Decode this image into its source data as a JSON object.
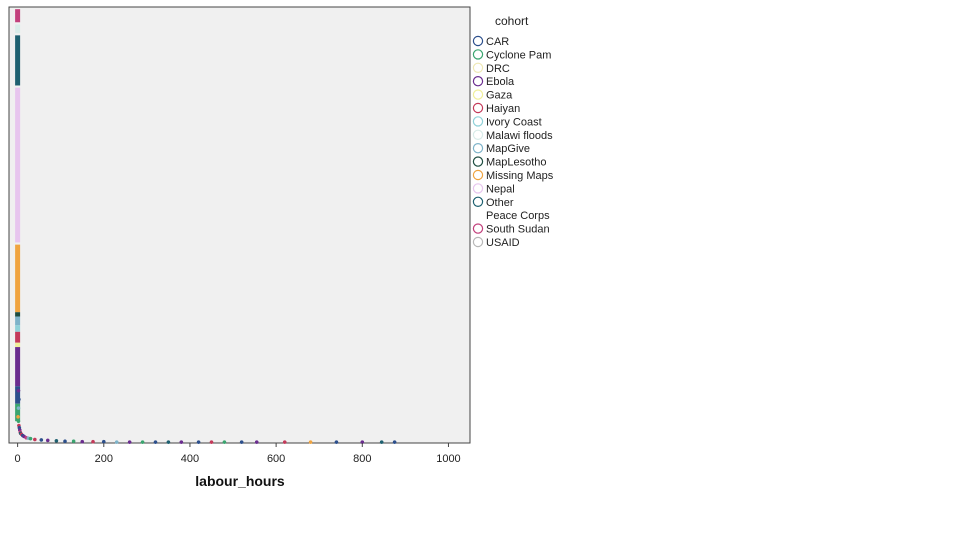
{
  "chart_data": {
    "type": "scatter",
    "xlabel": "labour_hours",
    "ylabel": "",
    "xlim": [
      -20,
      1050
    ],
    "xticks": [
      "0",
      "200",
      "400",
      "600",
      "800",
      "1000"
    ],
    "xtick_values": [
      0,
      200,
      400,
      600,
      800,
      1000
    ],
    "grid": false,
    "legend": {
      "title": "cohort",
      "placement": "right",
      "entries": [
        {
          "name": "CAR",
          "color": "#2c4f8c"
        },
        {
          "name": "Cyclone Pam",
          "color": "#3aa56f"
        },
        {
          "name": "DRC",
          "color": "#efe9b5"
        },
        {
          "name": "Ebola",
          "color": "#6a2d8f"
        },
        {
          "name": "Gaza",
          "color": "#f0ef9a"
        },
        {
          "name": "Haiyan",
          "color": "#c43a5a"
        },
        {
          "name": "Ivory Coast",
          "color": "#8fd1d8"
        },
        {
          "name": "Malawi floods",
          "color": "#d9ece9"
        },
        {
          "name": "MapGive",
          "color": "#7eb3c9"
        },
        {
          "name": "MapLesotho",
          "color": "#1e4d40"
        },
        {
          "name": "Missing Maps",
          "color": "#f0a440"
        },
        {
          "name": "Nepal",
          "color": "#e7c5ee"
        },
        {
          "name": "Other",
          "color": "#1e6070"
        },
        {
          "name": "Peace Corps",
          "color": "#ffffff"
        },
        {
          "name": "South Sudan",
          "color": "#c2407c"
        },
        {
          "name": "USAID",
          "color": "#b8b8b8"
        }
      ]
    },
    "series": [
      {
        "cohort": "South Sudan",
        "x": [
          0,
          0
        ],
        "y": [
          0.995,
          0.965
        ]
      },
      {
        "cohort": "Malawi floods",
        "x": [
          0,
          0
        ],
        "y": [
          0.96,
          0.94
        ]
      },
      {
        "cohort": "Other",
        "x": [
          0,
          0
        ],
        "y": [
          0.935,
          0.82
        ]
      },
      {
        "cohort": "Nepal",
        "x": [
          0,
          0
        ],
        "y": [
          0.815,
          0.46
        ]
      },
      {
        "cohort": "Missing Maps",
        "x": [
          0,
          0
        ],
        "y": [
          0.455,
          0.3
        ]
      },
      {
        "cohort": "MapLesotho",
        "x": [
          0,
          0
        ],
        "y": [
          0.3,
          0.29
        ]
      },
      {
        "cohort": "MapGive",
        "x": [
          0,
          0
        ],
        "y": [
          0.29,
          0.27
        ]
      },
      {
        "cohort": "Ivory Coast",
        "x": [
          0,
          0
        ],
        "y": [
          0.27,
          0.255
        ]
      },
      {
        "cohort": "Haiyan",
        "x": [
          0,
          0
        ],
        "y": [
          0.255,
          0.23
        ]
      },
      {
        "cohort": "Gaza",
        "x": [
          0,
          0
        ],
        "y": [
          0.23,
          0.22
        ]
      },
      {
        "cohort": "Ebola",
        "x": [
          0,
          0
        ],
        "y": [
          0.22,
          0.13
        ]
      },
      {
        "cohort": "CAR",
        "x": [
          0,
          0
        ],
        "y": [
          0.13,
          0.09
        ]
      },
      {
        "cohort": "Cyclone Pam",
        "x": [
          0,
          0
        ],
        "y": [
          0.09,
          0.05
        ]
      }
    ],
    "points": [
      {
        "cohort": "Ebola",
        "x": 2,
        "y": 0.12
      },
      {
        "cohort": "CAR",
        "x": 3,
        "y": 0.1
      },
      {
        "cohort": "MapGive",
        "x": 2,
        "y": 0.08
      },
      {
        "cohort": "Missing Maps",
        "x": 1,
        "y": 0.06
      },
      {
        "cohort": "Cyclone Pam",
        "x": 2,
        "y": 0.05
      },
      {
        "cohort": "Haiyan",
        "x": 3,
        "y": 0.04
      },
      {
        "cohort": "CAR",
        "x": 4,
        "y": 0.035
      },
      {
        "cohort": "Ebola",
        "x": 5,
        "y": 0.03
      },
      {
        "cohort": "South Sudan",
        "x": 6,
        "y": 0.025
      },
      {
        "cohort": "Other",
        "x": 7,
        "y": 0.022
      },
      {
        "cohort": "Haiyan",
        "x": 9,
        "y": 0.02
      },
      {
        "cohort": "CAR",
        "x": 12,
        "y": 0.017
      },
      {
        "cohort": "Ebola",
        "x": 15,
        "y": 0.015
      },
      {
        "cohort": "South Sudan",
        "x": 20,
        "y": 0.012
      },
      {
        "cohort": "MapGive",
        "x": 25,
        "y": 0.011
      },
      {
        "cohort": "Cyclone Pam",
        "x": 30,
        "y": 0.01
      },
      {
        "cohort": "Haiyan",
        "x": 40,
        "y": 0.008
      },
      {
        "cohort": "CAR",
        "x": 55,
        "y": 0.007
      },
      {
        "cohort": "Ebola",
        "x": 70,
        "y": 0.006
      },
      {
        "cohort": "Other",
        "x": 90,
        "y": 0.005
      },
      {
        "cohort": "CAR",
        "x": 110,
        "y": 0.004
      },
      {
        "cohort": "Cyclone Pam",
        "x": 130,
        "y": 0.004
      },
      {
        "cohort": "Ebola",
        "x": 150,
        "y": 0.003
      },
      {
        "cohort": "Haiyan",
        "x": 175,
        "y": 0.003
      },
      {
        "cohort": "CAR",
        "x": 200,
        "y": 0.003
      },
      {
        "cohort": "MapGive",
        "x": 230,
        "y": 0.002
      },
      {
        "cohort": "Ebola",
        "x": 260,
        "y": 0.002
      },
      {
        "cohort": "Cyclone Pam",
        "x": 290,
        "y": 0.002
      },
      {
        "cohort": "CAR",
        "x": 320,
        "y": 0.002
      },
      {
        "cohort": "Other",
        "x": 350,
        "y": 0.002
      },
      {
        "cohort": "Ebola",
        "x": 380,
        "y": 0.002
      },
      {
        "cohort": "CAR",
        "x": 420,
        "y": 0.002
      },
      {
        "cohort": "Haiyan",
        "x": 450,
        "y": 0.002
      },
      {
        "cohort": "Cyclone Pam",
        "x": 480,
        "y": 0.002
      },
      {
        "cohort": "CAR",
        "x": 520,
        "y": 0.002
      },
      {
        "cohort": "Ebola",
        "x": 555,
        "y": 0.002
      },
      {
        "cohort": "Haiyan",
        "x": 620,
        "y": 0.002
      },
      {
        "cohort": "Missing Maps",
        "x": 680,
        "y": 0.002
      },
      {
        "cohort": "CAR",
        "x": 740,
        "y": 0.002
      },
      {
        "cohort": "Ebola",
        "x": 800,
        "y": 0.002
      },
      {
        "cohort": "Other",
        "x": 845,
        "y": 0.002
      },
      {
        "cohort": "CAR",
        "x": 875,
        "y": 0.002
      }
    ]
  }
}
